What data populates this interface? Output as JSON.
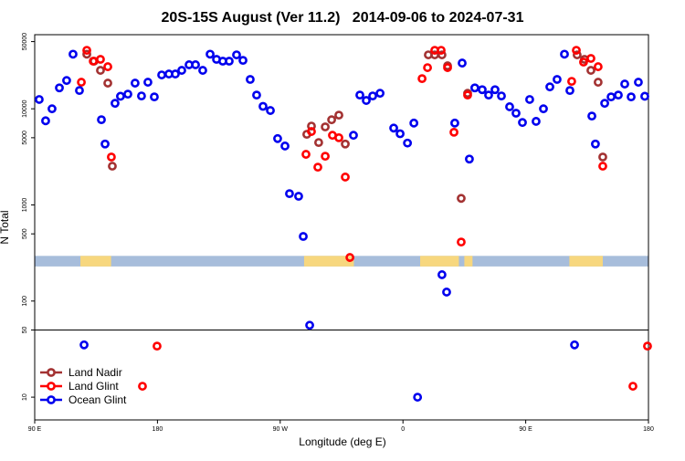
{
  "chart_data": {
    "type": "scatter",
    "title": "20S-15S August (Ver 11.2)   2014-09-06 to 2024-07-31",
    "x_label": "Longitude (deg E)",
    "y_label": "N Total",
    "xlim": [
      90,
      540
    ],
    "ylim": [
      5.8,
      59000
    ],
    "log_y": true,
    "legend_position": "bottom-left",
    "xticks": [
      {
        "value": 90,
        "label": "90 E"
      },
      180,
      {
        "value": 270,
        "label": "90 W"
      },
      {
        "value": 360,
        "label": "0"
      },
      {
        "value": 450,
        "label": "90 E"
      },
      {
        "value": 540,
        "label": "180"
      }
    ],
    "yticks": [
      10,
      50,
      100,
      500,
      1000,
      5000,
      10000,
      50000
    ],
    "hline": 50,
    "band": {
      "range": [
        229,
        295
      ],
      "color": "#a7bddb",
      "land_color": "#f7d77e",
      "land": [
        [
          123.5,
          146
        ],
        [
          287.5,
          324
        ],
        [
          372.6,
          401
        ],
        [
          405,
          411
        ],
        [
          482,
          506.5
        ]
      ]
    },
    "series": [
      {
        "name": "Land Nadir",
        "color": "#a33232",
        "x": [
          128.2,
          133.5,
          138.2,
          143.6,
          146.9,
          289.5,
          292.9,
          298.2,
          303.0,
          307.7,
          313.0,
          317.7,
          378.6,
          383.3,
          388.6,
          392.7,
          402.7,
          407.4,
          487.7,
          493.1,
          497.8,
          503.1,
          506.5
        ],
        "values": [
          37000,
          31300,
          25100,
          18500,
          2530,
          5430,
          6610,
          4460,
          6480,
          7690,
          8590,
          4300,
          36400,
          36400,
          36400,
          28000,
          1170,
          14500,
          36400,
          32700,
          25100,
          18900,
          3150
        ]
      },
      {
        "name": "Land Glint",
        "color": "#ff0000",
        "x": [
          124.2,
          128.2,
          132.9,
          138.2,
          143.6,
          146.2,
          169.0,
          179.7,
          288.9,
          292.9,
          297.6,
          303.0,
          308.3,
          313.0,
          317.7,
          321.1,
          374.0,
          378.0,
          383.3,
          388.0,
          392.7,
          397.4,
          402.7,
          407.4,
          483.7,
          487.1,
          492.4,
          497.8,
          503.1,
          506.5,
          528.6,
          539.3
        ],
        "values": [
          18900,
          40600,
          31300,
          32700,
          27400,
          3150,
          13,
          34,
          3360,
          5800,
          2470,
          3210,
          5300,
          5000,
          1950,
          284,
          20600,
          26800,
          40600,
          40600,
          26800,
          5700,
          411,
          13900,
          19300,
          40600,
          30600,
          33400,
          27400,
          2530,
          13,
          34
        ]
      },
      {
        "name": "Ocean Glint",
        "color": "#0000ee",
        "x": [
          93.3,
          98.0,
          102.7,
          108.1,
          113.4,
          118.1,
          122.8,
          126.2,
          138.9,
          141.6,
          148.9,
          152.9,
          158.3,
          163.6,
          168.3,
          173.0,
          177.7,
          183.1,
          188.4,
          193.1,
          197.8,
          203.2,
          207.9,
          213.2,
          218.6,
          223.3,
          227.9,
          232.6,
          238.0,
          242.7,
          248.0,
          252.7,
          257.4,
          262.8,
          268.1,
          273.5,
          276.8,
          283.5,
          286.9,
          291.6,
          323.7,
          328.4,
          333.1,
          337.8,
          343.2,
          353.2,
          357.9,
          363.3,
          368.0,
          370.7,
          388.6,
          392.0,
          398.0,
          403.4,
          408.7,
          412.7,
          418.1,
          422.8,
          427.5,
          432.2,
          438.2,
          442.9,
          447.6,
          452.9,
          457.6,
          463.0,
          467.7,
          473.0,
          478.4,
          482.4,
          485.8,
          498.5,
          501.1,
          507.9,
          512.6,
          517.9,
          522.6,
          527.3,
          532.6,
          537.3
        ],
        "values": [
          12500,
          7500,
          10000,
          16500,
          19700,
          37000,
          15500,
          35,
          7700,
          4300,
          11400,
          13500,
          14200,
          18500,
          13600,
          18900,
          13300,
          22500,
          23000,
          23000,
          25100,
          28700,
          28700,
          25100,
          37000,
          32700,
          31300,
          31300,
          36400,
          31900,
          20200,
          13900,
          10600,
          9600,
          4900,
          4100,
          1310,
          1230,
          470,
          56,
          5300,
          13900,
          12200,
          13600,
          14500,
          6300,
          5500,
          4400,
          7100,
          10,
          188,
          124,
          7100,
          29900,
          3000,
          16500,
          15800,
          13900,
          15800,
          13600,
          10500,
          9000,
          7200,
          12500,
          7400,
          10000,
          16900,
          20200,
          37000,
          15500,
          35,
          8400,
          4300,
          11400,
          13300,
          13900,
          18100,
          13300,
          18900,
          13500
        ]
      }
    ]
  }
}
